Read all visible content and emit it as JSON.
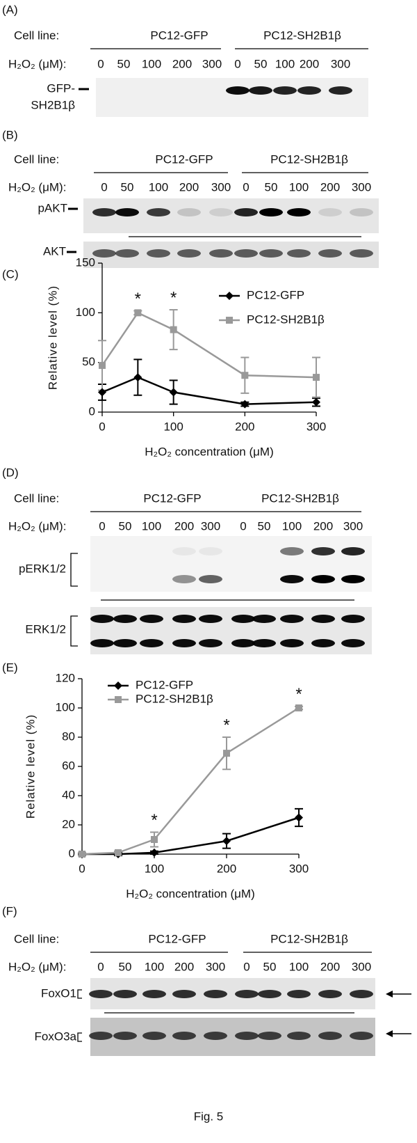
{
  "blot_panels": [
    {
      "label": "(A)",
      "cell_line_label": "Cell line:",
      "groups": [
        "PC12-GFP",
        "PC12-SH2B1β"
      ],
      "dose_label": "H₂O₂ (μM):",
      "doses": [
        0,
        50,
        100,
        200,
        300,
        0,
        50,
        100,
        200,
        300
      ],
      "blots": [
        [
          "GFP-",
          "SH2B1β"
        ]
      ]
    },
    {
      "label": "(B)",
      "cell_line_label": "Cell line:",
      "groups": [
        "PC12-GFP",
        "PC12-SH2B1β"
      ],
      "dose_label": "H₂O₂ (μM):",
      "doses": [
        0,
        50,
        100,
        200,
        300,
        0,
        50,
        100,
        200,
        300
      ],
      "blots": [
        [
          "pAKT"
        ],
        [
          "AKT"
        ]
      ]
    },
    {
      "label": "(D)",
      "cell_line_label": "Cell line:",
      "groups": [
        "PC12-GFP",
        "PC12-SH2B1β"
      ],
      "dose_label": "H₂O₂ (μM):",
      "doses": [
        0,
        50,
        100,
        200,
        300,
        0,
        50,
        100,
        200,
        300
      ],
      "blots": [
        [
          "pERK1/2"
        ],
        [
          "ERK1/2"
        ]
      ]
    },
    {
      "label": "(F)",
      "cell_line_label": "Cell line:",
      "groups": [
        "PC12-GFP",
        "PC12-SH2B1β"
      ],
      "dose_label": "H₂O₂ (μM):",
      "doses": [
        0,
        50,
        100,
        200,
        300,
        0,
        50,
        100,
        200,
        300
      ],
      "blots": [
        [
          "FoxO1"
        ],
        [
          "FoxO3a"
        ]
      ]
    }
  ],
  "chart_data": [
    {
      "type": "line",
      "label": "(C)",
      "x_label": "H₂O₂ concentration (μM)",
      "y_label": "Relative level (%)",
      "x": [
        0,
        50,
        100,
        200,
        300
      ],
      "xlim": [
        0,
        300
      ],
      "xticks": [
        0,
        100,
        200,
        300
      ],
      "ylim": [
        0,
        150
      ],
      "yticks": [
        0,
        50,
        100,
        150
      ],
      "series": [
        {
          "name": "PC12-GFP",
          "color": "#000000",
          "marker": "diamond",
          "values": [
            20,
            35,
            20,
            8,
            10
          ],
          "errors": [
            8,
            18,
            12,
            2,
            4
          ]
        },
        {
          "name": "PC12-SH2B1β",
          "color": "#999999",
          "marker": "square",
          "values": [
            47,
            100,
            83,
            37,
            35
          ],
          "errors": [
            25,
            2,
            20,
            18,
            20
          ]
        }
      ],
      "annotations": [
        {
          "text": "*",
          "x": 50
        },
        {
          "text": "*",
          "x": 100
        }
      ]
    },
    {
      "type": "line",
      "label": "(E)",
      "x_label": "H₂O₂ concentration (μM)",
      "y_label": "Relative level (%)",
      "x": [
        0,
        50,
        100,
        200,
        300
      ],
      "xlim": [
        0,
        300
      ],
      "xticks": [
        0,
        100,
        200,
        300
      ],
      "ylim": [
        0,
        120
      ],
      "yticks": [
        0,
        20,
        40,
        60,
        80,
        100,
        120
      ],
      "series": [
        {
          "name": "PC12-GFP",
          "color": "#000000",
          "marker": "diamond",
          "values": [
            0,
            0,
            1,
            9,
            25
          ],
          "errors": [
            1,
            1,
            1,
            5,
            6
          ]
        },
        {
          "name": "PC12-SH2B1β",
          "color": "#999999",
          "marker": "square",
          "values": [
            0,
            1,
            10,
            69,
            100
          ],
          "errors": [
            1,
            1,
            5,
            11,
            1
          ]
        }
      ],
      "annotations": [
        {
          "text": "*",
          "x": 100
        },
        {
          "text": "*",
          "x": 200
        },
        {
          "text": "*",
          "x": 300
        }
      ]
    }
  ],
  "caption": "Fig. 5"
}
